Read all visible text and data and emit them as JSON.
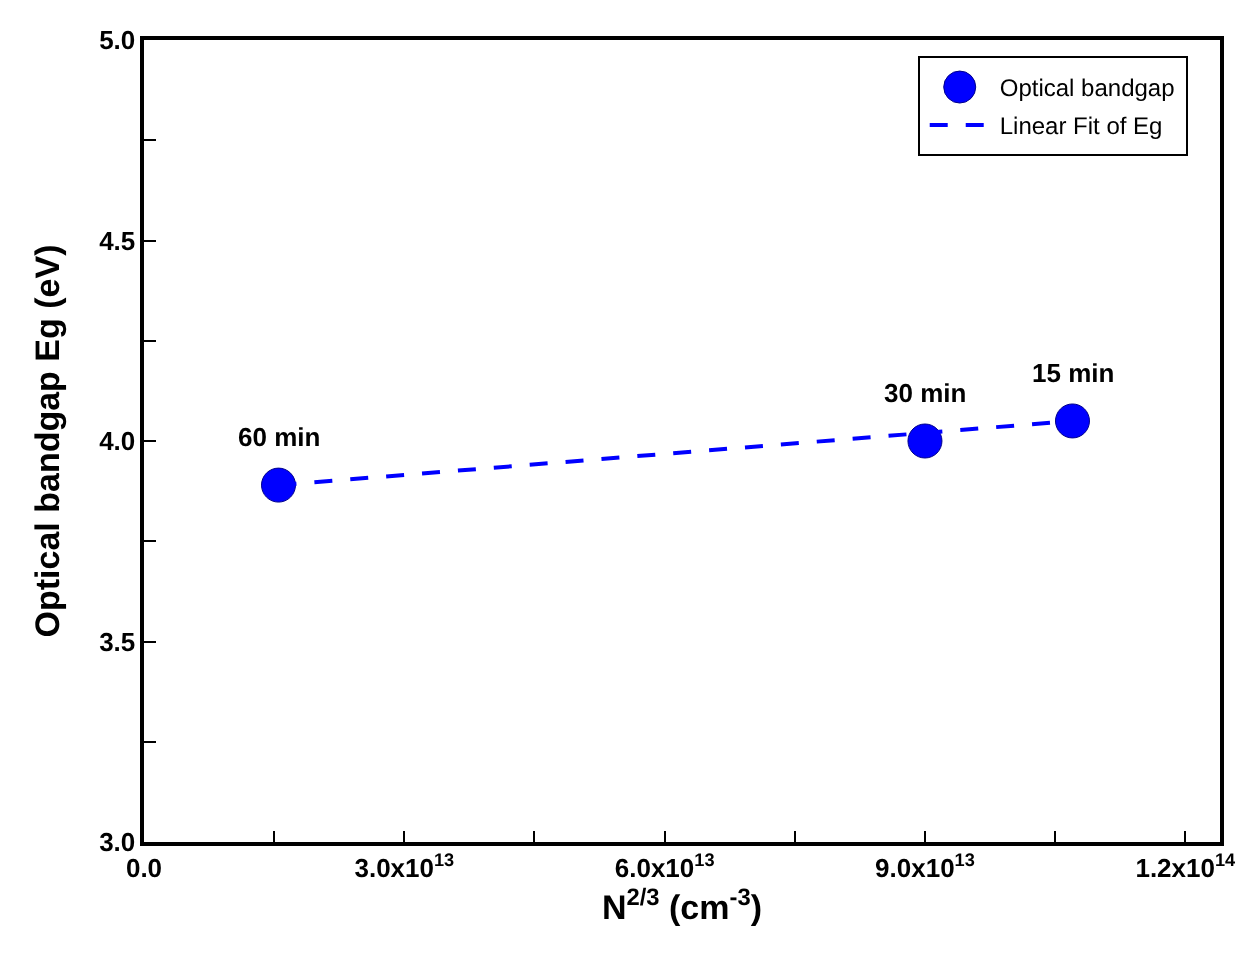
{
  "chart_data": {
    "type": "scatter",
    "xlabel": "N$^{2/3}$ (cm$^{-3}$)",
    "ylabel": "Optical bandgap Eg (eV)",
    "series": [
      {
        "name": "Optical bandgap",
        "color": "#0000ff",
        "marker": "circle",
        "x": [
          15500000000000.0,
          90000000000000.0,
          107000000000000.0
        ],
        "values": [
          3.89,
          4.0,
          4.05
        ]
      },
      {
        "name": "Linear Fit of Eg",
        "type": "line",
        "color": "#0000ff",
        "marker": "none",
        "line_style": "dashed",
        "x": [
          15500000000000.0,
          107000000000000.0
        ],
        "values": [
          3.89,
          4.05
        ]
      }
    ],
    "annotations": [
      {
        "text": "60 min",
        "x": 15500000000000.0,
        "y": 3.89
      },
      {
        "text": "30 min",
        "x": 90000000000000.0,
        "y": 4.0
      },
      {
        "text": "15 min",
        "x": 107000000000000.0,
        "y": 4.05
      }
    ],
    "xlim": [
      0,
      124000000000000.0
    ],
    "xticks": [
      {
        "value": 0,
        "label": "0.0"
      },
      {
        "value": 15000000000000.0,
        "label": null
      },
      {
        "value": 30000000000000.0,
        "label": "3.0x10$^{13}$"
      },
      {
        "value": 45000000000000.0,
        "label": null
      },
      {
        "value": 60000000000000.0,
        "label": "6.0x10$^{13}$"
      },
      {
        "value": 75000000000000.0,
        "label": null
      },
      {
        "value": 90000000000000.0,
        "label": "9.0x10$^{13}$"
      },
      {
        "value": 105000000000000.0,
        "label": null
      },
      {
        "value": 120000000000000.0,
        "label": "1.2x10$^{14}$"
      }
    ],
    "ylim": [
      3.0,
      5.0
    ],
    "yticks": [
      {
        "value": 3.0,
        "label": "3.0"
      },
      {
        "value": 3.25,
        "label": null
      },
      {
        "value": 3.5,
        "label": "3.5"
      },
      {
        "value": 3.75,
        "label": null
      },
      {
        "value": 4.0,
        "label": "4.0"
      },
      {
        "value": 4.25,
        "label": null
      },
      {
        "value": 4.5,
        "label": "4.5"
      },
      {
        "value": 4.75,
        "label": null
      },
      {
        "value": 5.0,
        "label": "5.0"
      }
    ],
    "grid": false,
    "legend": "top right"
  }
}
